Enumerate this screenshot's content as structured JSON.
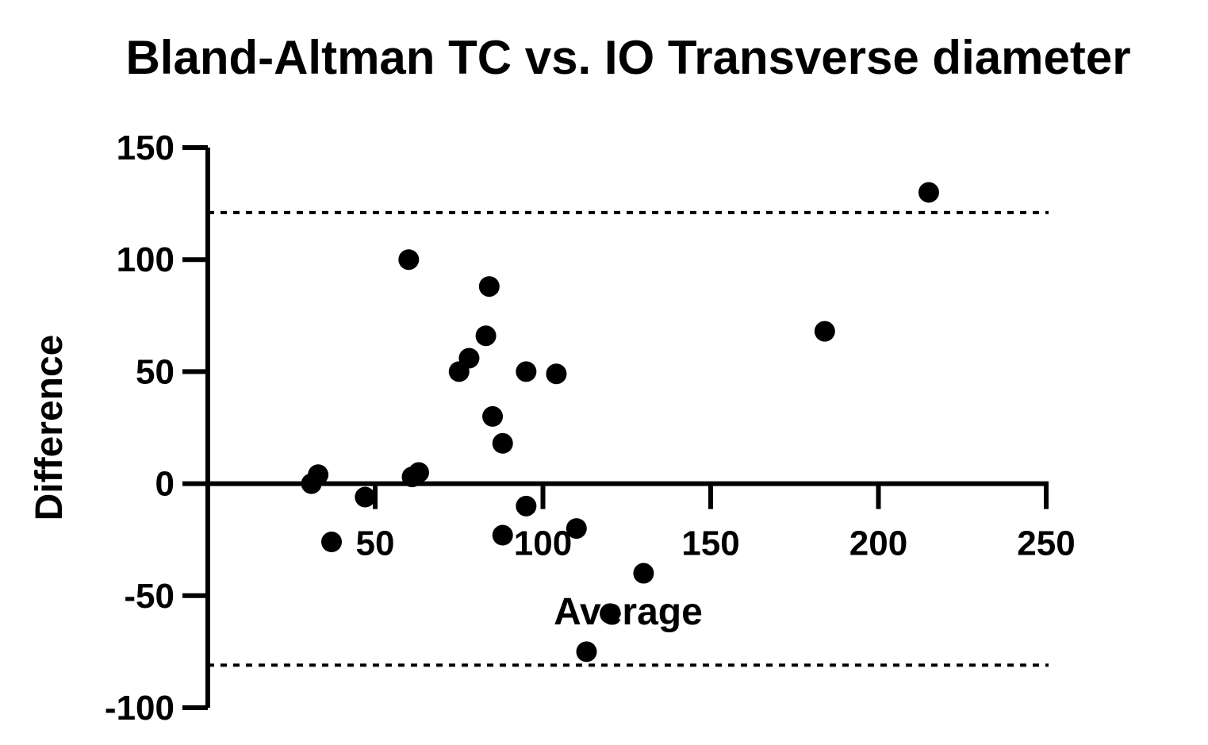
{
  "chart_data": {
    "type": "scatter",
    "title": "Bland-Altman TC vs. IO Transverse diameter",
    "xlabel": "Average",
    "ylabel": "Difference",
    "xlim": [
      0,
      250
    ],
    "ylim": [
      -100,
      150
    ],
    "x_ticks": [
      50,
      100,
      150,
      200,
      250
    ],
    "y_ticks": [
      150,
      100,
      50,
      0,
      -50,
      -100
    ],
    "x_tick_labels": [
      "50",
      "100",
      "150",
      "200",
      "250"
    ],
    "y_tick_labels": [
      "150",
      "100",
      "50",
      "0",
      "-50",
      "-100"
    ],
    "grid": false,
    "colors": {
      "points": "#000000",
      "axes": "#000000",
      "limits": "#000000"
    },
    "limits_of_agreement": [
      121,
      -81
    ],
    "series": [
      {
        "points": [
          {
            "x": 31,
            "y": 0
          },
          {
            "x": 33,
            "y": 4
          },
          {
            "x": 37,
            "y": -26
          },
          {
            "x": 47,
            "y": -6
          },
          {
            "x": 60,
            "y": 100
          },
          {
            "x": 61,
            "y": 3
          },
          {
            "x": 63,
            "y": 5
          },
          {
            "x": 75,
            "y": 50
          },
          {
            "x": 78,
            "y": 56
          },
          {
            "x": 83,
            "y": 66
          },
          {
            "x": 84,
            "y": 88
          },
          {
            "x": 85,
            "y": 30
          },
          {
            "x": 88,
            "y": 18
          },
          {
            "x": 88,
            "y": -23
          },
          {
            "x": 95,
            "y": 50
          },
          {
            "x": 95,
            "y": -10
          },
          {
            "x": 104,
            "y": 49
          },
          {
            "x": 110,
            "y": -20
          },
          {
            "x": 113,
            "y": -75
          },
          {
            "x": 120,
            "y": -58
          },
          {
            "x": 130,
            "y": -40
          },
          {
            "x": 184,
            "y": 68
          },
          {
            "x": 215,
            "y": 130
          }
        ]
      }
    ]
  }
}
